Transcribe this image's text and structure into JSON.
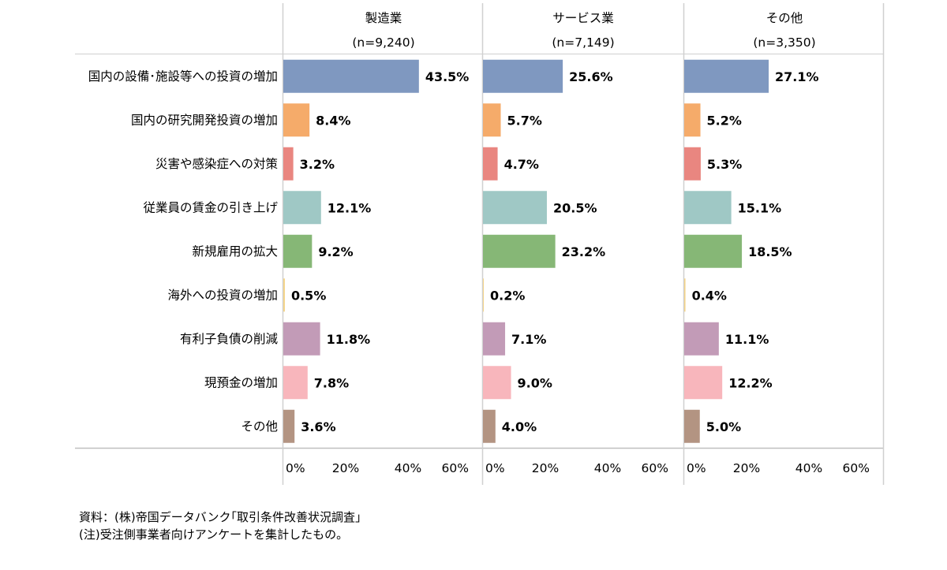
{
  "chart_data": {
    "type": "bar",
    "orientation": "horizontal",
    "categories": [
      "国内の設備･施設等への投資の増加",
      "国内の研究開発投資の増加",
      "災害や感染症への対策",
      "従業員の賃金の引き上げ",
      "新規雇用の拡大",
      "海外への投資の増加",
      "有利子負債の削減",
      "現預金の増加",
      "その他"
    ],
    "category_colors": [
      "#7f98c0",
      "#f5ab6a",
      "#e98680",
      "#9fc8c5",
      "#86b776",
      "#f4d48a",
      "#c29bb7",
      "#f8b6bc",
      "#b39482"
    ],
    "panels": [
      {
        "title": "製造業",
        "n_label": "(n=9,240)",
        "values": [
          43.5,
          8.4,
          3.2,
          12.1,
          9.2,
          0.5,
          11.8,
          7.8,
          3.6
        ],
        "labels": [
          "43.5%",
          "8.4%",
          "3.2%",
          "12.1%",
          "9.2%",
          "0.5%",
          "11.8%",
          "7.8%",
          "3.6%"
        ]
      },
      {
        "title": "サービス業",
        "n_label": "(n=7,149)",
        "values": [
          25.6,
          5.7,
          4.7,
          20.5,
          23.2,
          0.2,
          7.1,
          9.0,
          4.0
        ],
        "labels": [
          "25.6%",
          "5.7%",
          "4.7%",
          "20.5%",
          "23.2%",
          "0.2%",
          "7.1%",
          "9.0%",
          "4.0%"
        ]
      },
      {
        "title": "その他",
        "n_label": "(n=3,350)",
        "values": [
          27.1,
          5.2,
          5.3,
          15.1,
          18.5,
          0.4,
          11.1,
          12.2,
          5.0
        ],
        "labels": [
          "27.1%",
          "5.2%",
          "5.3%",
          "15.1%",
          "18.5%",
          "0.4%",
          "11.1%",
          "12.2%",
          "5.0%"
        ]
      }
    ],
    "xlim": [
      0,
      60
    ],
    "xticks": [
      0,
      20,
      40,
      60
    ],
    "xtick_labels": [
      "0%",
      "20%",
      "40%",
      "60%"
    ],
    "grid": false
  },
  "notes": {
    "source": "資料：(株)帝国データバンク｢取引条件改善状況調査｣",
    "note": "(注)受注側事業者向けアンケートを集計したもの。"
  }
}
